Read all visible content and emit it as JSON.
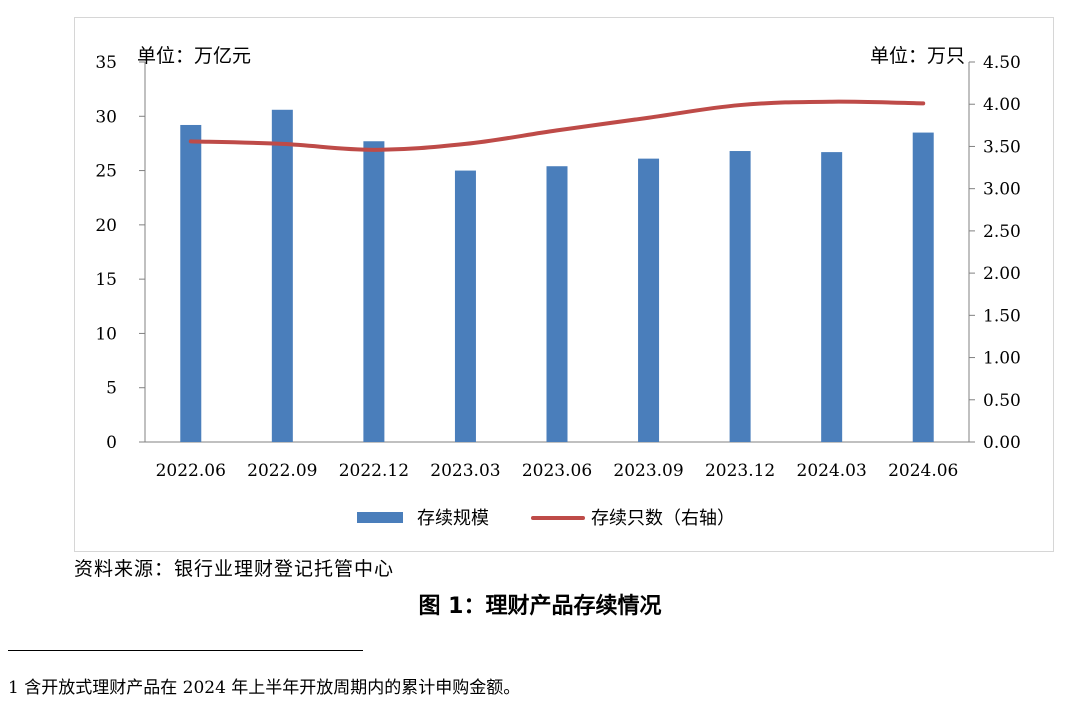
{
  "chart_data": {
    "type": "bar",
    "categories": [
      "2022.06",
      "2022.09",
      "2022.12",
      "2023.03",
      "2023.06",
      "2023.09",
      "2023.12",
      "2024.03",
      "2024.06"
    ],
    "series": [
      {
        "name": "存续规模",
        "type": "bar",
        "axis": "left",
        "color": "#4a7ebb",
        "values": [
          29.2,
          30.6,
          27.7,
          25.0,
          25.4,
          26.1,
          26.8,
          26.7,
          28.5
        ]
      },
      {
        "name": "存续只数（右轴）",
        "type": "line",
        "axis": "right",
        "color": "#be4b48",
        "values": [
          3.56,
          3.53,
          3.46,
          3.53,
          3.69,
          3.84,
          3.99,
          4.03,
          4.01
        ]
      }
    ],
    "left_axis": {
      "unit": "单位：万亿元",
      "ylim": [
        0,
        35
      ],
      "ticks": [
        "0",
        "5",
        "10",
        "15",
        "20",
        "25",
        "30",
        "35"
      ]
    },
    "right_axis": {
      "unit": "单位：万只",
      "ylim": [
        0,
        4.5
      ],
      "ticks": [
        "0.00",
        "0.50",
        "1.00",
        "1.50",
        "2.00",
        "2.50",
        "3.00",
        "3.50",
        "4.00",
        "4.50"
      ]
    },
    "legend": {
      "position": "bottom",
      "items": [
        {
          "label": "存续规模",
          "shape": "bar"
        },
        {
          "label": "存续只数（右轴）",
          "shape": "line"
        }
      ]
    },
    "grid": false
  },
  "source": "资料来源：银行业理财登记托管中心",
  "caption": "图 1：理财产品存续情况",
  "footnote": "1  含开放式理财产品在 2024 年上半年开放周期内的累计申购金额。"
}
